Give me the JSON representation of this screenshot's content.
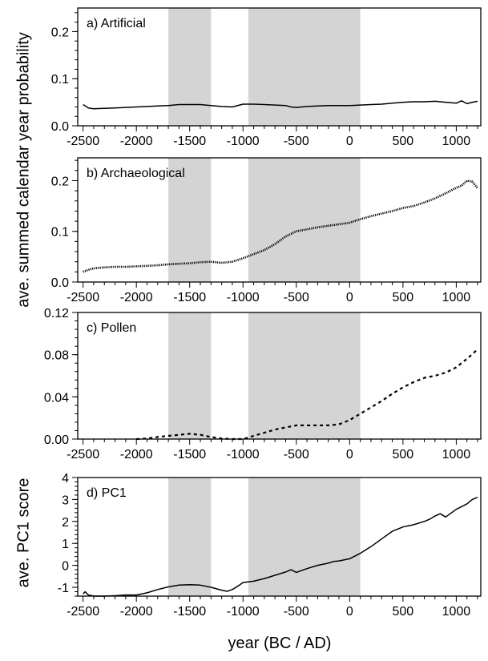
{
  "figure": {
    "ylabel_top": "ave. summed calendar year probability",
    "ylabel_bottom": "ave. PC1 score",
    "xlabel": "year (BC / AD)",
    "shading_color": "#d4d4d4",
    "shaded_periods": [
      [
        -1700,
        -1300
      ],
      [
        -950,
        100
      ]
    ]
  },
  "chart_data": [
    {
      "type": "line",
      "title": "a) Artificial",
      "xlim": [
        -2550,
        1230
      ],
      "ylim": [
        0,
        0.25
      ],
      "x_ticks": [
        -2500,
        -2000,
        -1500,
        -1000,
        -500,
        0,
        500,
        1000
      ],
      "y_ticks": [
        0.0,
        0.1,
        0.2
      ],
      "y_tick_labels": [
        "0.0",
        "0.1",
        "0.2"
      ],
      "style": "solid",
      "series": [
        {
          "x": [
            -2500,
            -2450,
            -2400,
            -2300,
            -2200,
            -2100,
            -2000,
            -1900,
            -1800,
            -1700,
            -1600,
            -1500,
            -1400,
            -1300,
            -1200,
            -1100,
            -1000,
            -900,
            -800,
            -700,
            -600,
            -550,
            -500,
            -400,
            -300,
            -200,
            -100,
            0,
            100,
            200,
            300,
            400,
            500,
            600,
            700,
            800,
            900,
            1000,
            1050,
            1100,
            1150,
            1200
          ],
          "values": [
            0.045,
            0.038,
            0.036,
            0.037,
            0.038,
            0.039,
            0.04,
            0.041,
            0.042,
            0.043,
            0.045,
            0.045,
            0.045,
            0.043,
            0.041,
            0.04,
            0.046,
            0.046,
            0.045,
            0.044,
            0.043,
            0.04,
            0.039,
            0.041,
            0.042,
            0.043,
            0.043,
            0.043,
            0.044,
            0.045,
            0.046,
            0.048,
            0.05,
            0.051,
            0.051,
            0.052,
            0.05,
            0.048,
            0.053,
            0.047,
            0.05,
            0.052
          ]
        }
      ]
    },
    {
      "type": "line",
      "title": "b) Archaeological",
      "xlim": [
        -2550,
        1230
      ],
      "ylim": [
        0,
        0.245
      ],
      "x_ticks": [
        -2500,
        -2000,
        -1500,
        -1000,
        -500,
        0,
        500,
        1000
      ],
      "y_ticks": [
        0.0,
        0.1,
        0.2
      ],
      "y_tick_labels": [
        "0.0",
        "0.1",
        "0.2"
      ],
      "style": "dotted",
      "series": [
        {
          "x": [
            -2500,
            -2450,
            -2400,
            -2300,
            -2200,
            -2100,
            -2000,
            -1900,
            -1800,
            -1700,
            -1600,
            -1500,
            -1400,
            -1300,
            -1200,
            -1100,
            -1000,
            -900,
            -800,
            -700,
            -600,
            -500,
            -400,
            -300,
            -200,
            -100,
            0,
            100,
            200,
            300,
            400,
            500,
            600,
            700,
            800,
            900,
            1000,
            1050,
            1100,
            1150,
            1200
          ],
          "values": [
            0.02,
            0.024,
            0.027,
            0.029,
            0.03,
            0.03,
            0.031,
            0.032,
            0.033,
            0.035,
            0.036,
            0.037,
            0.039,
            0.04,
            0.038,
            0.04,
            0.047,
            0.055,
            0.063,
            0.075,
            0.09,
            0.1,
            0.104,
            0.108,
            0.111,
            0.114,
            0.117,
            0.124,
            0.13,
            0.135,
            0.14,
            0.146,
            0.15,
            0.157,
            0.165,
            0.175,
            0.186,
            0.19,
            0.2,
            0.198,
            0.185
          ]
        }
      ]
    },
    {
      "type": "line",
      "title": "c) Pollen",
      "xlim": [
        -2550,
        1230
      ],
      "ylim": [
        0,
        0.12
      ],
      "x_ticks": [
        -2500,
        -2000,
        -1500,
        -1000,
        -500,
        0,
        500,
        1000
      ],
      "y_ticks": [
        0.0,
        0.04,
        0.08,
        0.12
      ],
      "y_tick_labels": [
        "0.00",
        "0.04",
        "0.08",
        "0.12"
      ],
      "style": "dashed",
      "series": [
        {
          "x": [
            -2000,
            -1900,
            -1800,
            -1700,
            -1600,
            -1500,
            -1400,
            -1300,
            -1200,
            -1100,
            -1000,
            -900,
            -800,
            -700,
            -600,
            -500,
            -400,
            -300,
            -200,
            -100,
            0,
            100,
            200,
            300,
            400,
            500,
            600,
            700,
            800,
            900,
            1000,
            1100,
            1200
          ],
          "values": [
            0.0,
            0.0005,
            0.002,
            0.003,
            0.004,
            0.005,
            0.004,
            0.002,
            0.0005,
            0.0,
            0.0,
            0.003,
            0.006,
            0.009,
            0.011,
            0.013,
            0.013,
            0.013,
            0.013,
            0.014,
            0.018,
            0.024,
            0.03,
            0.036,
            0.043,
            0.049,
            0.054,
            0.058,
            0.06,
            0.063,
            0.068,
            0.076,
            0.085
          ]
        }
      ]
    },
    {
      "type": "line",
      "title": "d) PC1",
      "xlim": [
        -2550,
        1230
      ],
      "ylim": [
        -1.4,
        4
      ],
      "x_ticks": [
        -2500,
        -2000,
        -1500,
        -1000,
        -500,
        0,
        500,
        1000
      ],
      "y_ticks": [
        -1,
        0,
        1,
        2,
        3,
        4
      ],
      "y_tick_labels": [
        "-1",
        "0",
        "1",
        "2",
        "3",
        "4"
      ],
      "style": "solid",
      "series": [
        {
          "x": [
            -2500,
            -2480,
            -2450,
            -2400,
            -2300,
            -2200,
            -2100,
            -2000,
            -1900,
            -1800,
            -1700,
            -1600,
            -1500,
            -1400,
            -1300,
            -1200,
            -1150,
            -1100,
            -1050,
            -1000,
            -950,
            -900,
            -800,
            -700,
            -600,
            -550,
            -500,
            -400,
            -300,
            -200,
            -150,
            -100,
            0,
            100,
            200,
            300,
            400,
            500,
            600,
            700,
            750,
            800,
            850,
            900,
            1000,
            1100,
            1150,
            1200
          ],
          "values": [
            -1.3,
            -1.2,
            -1.35,
            -1.4,
            -1.4,
            -1.38,
            -1.35,
            -1.35,
            -1.25,
            -1.1,
            -0.98,
            -0.9,
            -0.88,
            -0.9,
            -1.0,
            -1.13,
            -1.18,
            -1.1,
            -0.95,
            -0.78,
            -0.75,
            -0.72,
            -0.6,
            -0.45,
            -0.3,
            -0.2,
            -0.32,
            -0.15,
            0.0,
            0.1,
            0.18,
            0.2,
            0.3,
            0.55,
            0.85,
            1.2,
            1.55,
            1.75,
            1.85,
            2.0,
            2.1,
            2.25,
            2.35,
            2.2,
            2.55,
            2.8,
            3.0,
            3.1
          ]
        }
      ]
    }
  ]
}
